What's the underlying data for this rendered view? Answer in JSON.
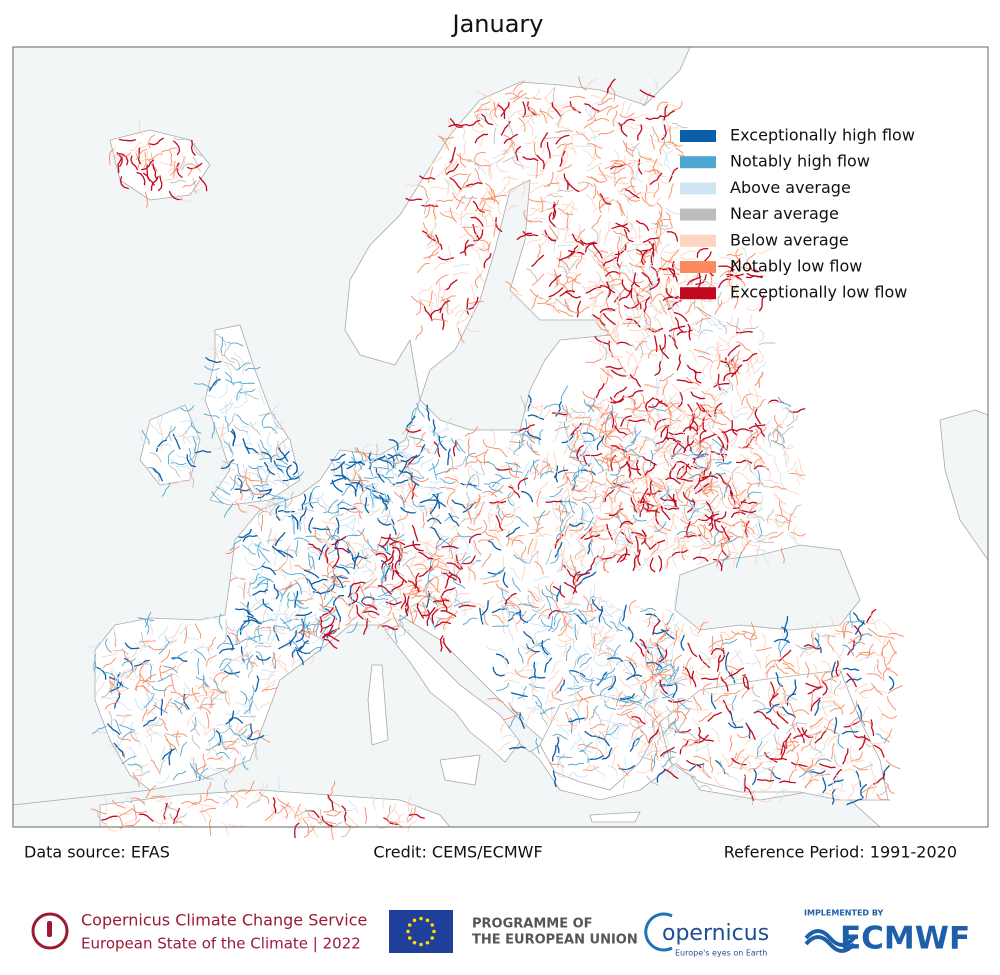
{
  "title": "January",
  "legend": {
    "items": [
      {
        "label": "Exceptionally high flow",
        "color": "#0b5ea8"
      },
      {
        "label": "Notably high flow",
        "color": "#4ea6d3"
      },
      {
        "label": "Above average",
        "color": "#cfe5f2"
      },
      {
        "label": "Near average",
        "color": "#bdbdbd"
      },
      {
        "label": "Below average",
        "color": "#fdd4c1"
      },
      {
        "label": "Notably low flow",
        "color": "#fb8a61"
      },
      {
        "label": "Exceptionally low flow",
        "color": "#c1081f"
      }
    ]
  },
  "footer": {
    "data_source": "Data source: EFAS",
    "credit": "Credit: CEMS/ECMWF",
    "reference": "Reference Period: 1991-2020"
  },
  "logos": {
    "c3s_line1": "Copernicus Climate Change Service",
    "c3s_line2": "European State of the Climate | 2022",
    "eu_line1": "PROGRAMME OF",
    "eu_line2": "THE EUROPEAN UNION",
    "copernicus": "opernicus",
    "copernicus_tagline": "Europe's eyes on Earth",
    "ecmwf_top": "IMPLEMENTED BY",
    "ecmwf": "ECMWF"
  }
}
